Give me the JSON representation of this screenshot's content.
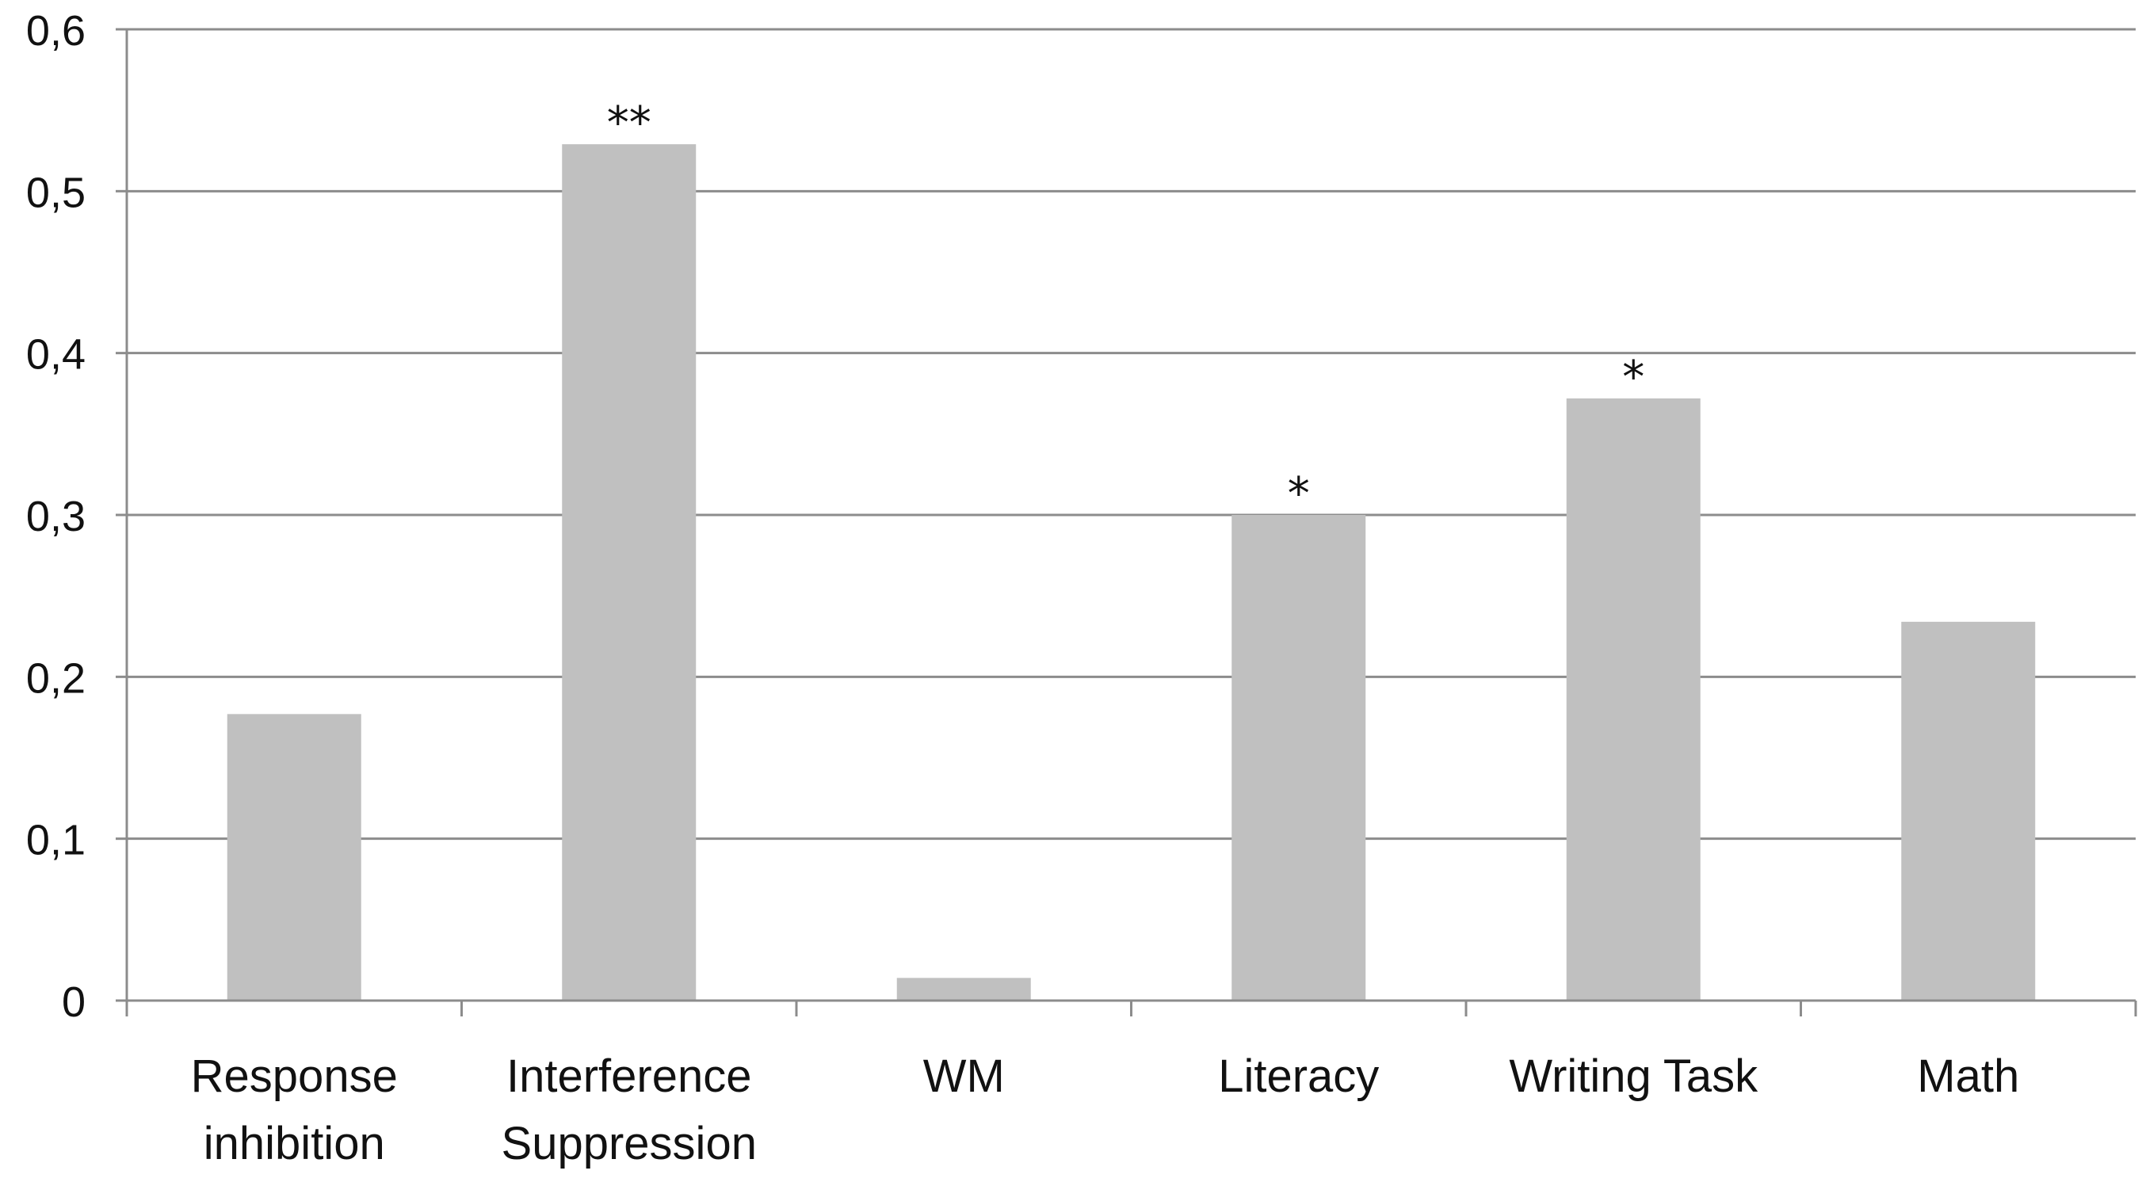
{
  "chart_data": {
    "type": "bar",
    "categories": [
      [
        "Response",
        "inhibition"
      ],
      [
        "Interference",
        "Suppression"
      ],
      [
        "WM"
      ],
      [
        "Literacy"
      ],
      [
        "Writing Task"
      ],
      [
        "Math"
      ]
    ],
    "values": [
      0.177,
      0.529,
      0.014,
      0.3,
      0.372,
      0.234
    ],
    "significance": [
      "",
      "**",
      "",
      "*",
      "*",
      ""
    ],
    "ylim": [
      0,
      0.6
    ],
    "yticks": [
      0,
      0.1,
      0.2,
      0.3,
      0.4,
      0.5,
      0.6
    ],
    "ytick_labels": [
      "0",
      "0,1",
      "0,2",
      "0,3",
      "0,4",
      "0,5",
      "0,6"
    ],
    "grid": true,
    "bar_color": "#c0c0c0",
    "grid_color": "#8c8c8c"
  }
}
